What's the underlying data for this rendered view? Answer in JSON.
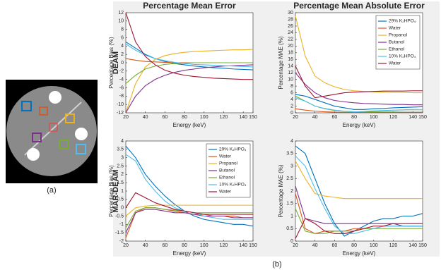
{
  "panel_a_label": "(a)",
  "panel_b_label": "(b)",
  "row_labels": [
    "DEAM",
    "MAR-DEAM"
  ],
  "chart_data": [
    {
      "type": "line",
      "title": "Percentage Mean Error",
      "x_label": "Energy (keV)",
      "y_label": "Percentage Bias (%)",
      "x": [
        20,
        30,
        40,
        50,
        60,
        70,
        80,
        90,
        100,
        110,
        120,
        130,
        140,
        150
      ],
      "xlim": [
        20,
        150
      ],
      "xticks": [
        20,
        40,
        60,
        80,
        100,
        120,
        140,
        150
      ],
      "ylim": [
        -12,
        12
      ],
      "yticks": [
        -12,
        -10,
        -8,
        -6,
        -4,
        -2,
        0,
        2,
        4,
        6,
        8,
        10,
        12
      ],
      "grid": false,
      "series": [
        {
          "color": "#0072bd",
          "values": [
            5,
            3.5,
            2,
            1,
            0.3,
            -0.2,
            -0.5,
            -0.8,
            -1,
            -1.2,
            -1.3,
            -1.5,
            -1.6,
            -1.7
          ]
        },
        {
          "color": "#d95319",
          "values": [
            1,
            0.6,
            0.3,
            0.2,
            0.1,
            0,
            0,
            0,
            0,
            0,
            0,
            0,
            0,
            0
          ]
        },
        {
          "color": "#edb120",
          "values": [
            -12,
            -5,
            -1,
            0.8,
            1.7,
            2.2,
            2.5,
            2.7,
            2.8,
            2.9,
            3,
            3.1,
            3.1,
            3.2
          ]
        },
        {
          "color": "#7e2f8e",
          "values": [
            -12,
            -8,
            -5.5,
            -4,
            -3,
            -2.3,
            -1.8,
            -1.5,
            -1.2,
            -1,
            -0.8,
            -0.7,
            -0.6,
            -0.5
          ]
        },
        {
          "color": "#77ac30",
          "values": [
            -5,
            -3,
            -1.5,
            -0.8,
            -0.4,
            -0.2,
            -0.1,
            0,
            0,
            0,
            0,
            0,
            0,
            0
          ]
        },
        {
          "color": "#4dbeee",
          "values": [
            4.5,
            3,
            1.8,
            1,
            0.5,
            0.1,
            -0.2,
            -0.4,
            -0.5,
            -0.6,
            -0.7,
            -0.8,
            -0.9,
            -1
          ]
        },
        {
          "color": "#a2142f",
          "values": [
            12,
            5,
            1.5,
            -0.5,
            -1.8,
            -2.5,
            -3,
            -3.3,
            -3.5,
            -3.7,
            -3.8,
            -3.9,
            -4,
            -4
          ]
        }
      ]
    },
    {
      "type": "line",
      "title": "Percentage Mean Absolute Error",
      "x_label": "Energy (keV)",
      "y_label": "Percentage MAE (%)",
      "x": [
        20,
        30,
        40,
        50,
        60,
        70,
        80,
        90,
        100,
        110,
        120,
        130,
        140,
        150
      ],
      "xlim": [
        20,
        150
      ],
      "xticks": [
        20,
        40,
        60,
        80,
        100,
        120,
        140,
        150
      ],
      "ylim": [
        0,
        30
      ],
      "yticks": [
        0,
        2,
        4,
        6,
        8,
        10,
        12,
        14,
        16,
        18,
        20,
        22,
        24,
        26,
        28,
        30
      ],
      "grid": false,
      "legend": "upper right",
      "series": [
        {
          "name": "29% K₂HPO₄",
          "color": "#0072bd",
          "values": [
            5.5,
            5,
            4,
            3,
            2,
            1.5,
            1,
            1,
            1.2,
            1.3,
            1.5,
            1.6,
            1.7,
            1.8
          ]
        },
        {
          "name": "Water",
          "color": "#d95319",
          "values": [
            1.2,
            0.8,
            0.5,
            0.3,
            0.2,
            0.1,
            0.1,
            0.1,
            0.1,
            0.1,
            0.1,
            0.1,
            0.1,
            0.1
          ]
        },
        {
          "name": "Propanol",
          "color": "#edb120",
          "values": [
            29,
            17,
            11,
            9,
            7.8,
            7,
            6.6,
            6.4,
            6.3,
            6.2,
            6.1,
            6.1,
            6,
            6
          ]
        },
        {
          "name": "Butanol",
          "color": "#7e2f8e",
          "values": [
            12,
            8.5,
            6,
            4.5,
            3.7,
            3.3,
            3,
            2.8,
            2.7,
            2.6,
            2.5,
            2.5,
            2.4,
            2.4
          ]
        },
        {
          "name": "Ethanol",
          "color": "#77ac30",
          "values": [
            5,
            3.5,
            2,
            1.2,
            0.7,
            0.4,
            0.3,
            0.3,
            0.3,
            0.4,
            0.4,
            0.5,
            0.5,
            0.5
          ]
        },
        {
          "name": "10% K₂HPO₄",
          "color": "#4dbeee",
          "values": [
            4.5,
            3.5,
            2,
            1.3,
            0.8,
            0.5,
            0.3,
            0.4,
            0.6,
            0.7,
            0.8,
            0.9,
            1,
            1
          ]
        },
        {
          "name": "Water",
          "color": "#a2142f",
          "values": [
            14,
            8,
            4.5,
            5,
            5.5,
            6,
            6.2,
            6.3,
            6.4,
            6.5,
            6.5,
            6.5,
            6.6,
            6.6
          ]
        }
      ]
    },
    {
      "type": "line",
      "x_label": "Energy (keV)",
      "y_label": "Percentage Bias (%)",
      "x": [
        20,
        30,
        40,
        50,
        60,
        70,
        80,
        90,
        100,
        110,
        120,
        130,
        140,
        150
      ],
      "xlim": [
        20,
        150
      ],
      "xticks": [
        20,
        40,
        60,
        80,
        100,
        120,
        140,
        150
      ],
      "ylim": [
        -2,
        4
      ],
      "yticks": [
        -2,
        -1.5,
        -1,
        -0.5,
        0,
        0.5,
        1,
        1.5,
        2,
        2.5,
        3,
        3.5,
        4
      ],
      "grid": false,
      "legend": "upper right",
      "series": [
        {
          "name": "29% K₂HPO₄",
          "color": "#0072bd",
          "values": [
            3.7,
            3,
            2,
            1.3,
            0.7,
            0.2,
            -0.2,
            -0.5,
            -0.7,
            -0.8,
            -0.9,
            -1,
            -1,
            -1.1
          ]
        },
        {
          "name": "Water",
          "color": "#d95319",
          "values": [
            -1.8,
            -0.3,
            0,
            0,
            -0.1,
            -0.2,
            -0.3,
            -0.4,
            -0.4,
            -0.5,
            -0.5,
            -0.5,
            -0.6,
            -0.6
          ]
        },
        {
          "name": "Propanol",
          "color": "#edb120",
          "values": [
            -0.5,
            0,
            0.1,
            0.15,
            0.15,
            0.15,
            0.15,
            0.15,
            0.15,
            0.15,
            0.15,
            0.15,
            0.15,
            0.15
          ]
        },
        {
          "name": "Butanol",
          "color": "#7e2f8e",
          "values": [
            -1.5,
            -0.3,
            -0.1,
            -0.1,
            -0.2,
            -0.3,
            -0.3,
            -0.4,
            -0.5,
            -0.5,
            -0.5,
            -0.6,
            -0.6,
            -0.6
          ]
        },
        {
          "name": "Ethanol",
          "color": "#77ac30",
          "values": [
            -1.2,
            -0.2,
            0,
            0,
            -0.1,
            -0.15,
            -0.2,
            -0.3,
            -0.3,
            -0.3,
            -0.3,
            -0.3,
            -0.3,
            -0.3
          ]
        },
        {
          "name": "10% K₂HPO₄",
          "color": "#4dbeee",
          "values": [
            3.2,
            2.8,
            1.7,
            1,
            0.4,
            0,
            -0.2,
            -0.3,
            -0.5,
            -0.6,
            -0.7,
            -0.7,
            -0.7,
            -0.7
          ]
        },
        {
          "name": "Water",
          "color": "#a2142f",
          "values": [
            0,
            0.9,
            0.6,
            0.3,
            0.1,
            -0.1,
            -0.2,
            -0.3,
            -0.4,
            -0.4,
            -0.4,
            -0.4,
            -0.4,
            -0.4
          ]
        }
      ]
    },
    {
      "type": "line",
      "x_label": "Energy (keV)",
      "y_label": "Percentage MAE (%)",
      "x": [
        20,
        30,
        40,
        50,
        60,
        70,
        80,
        90,
        100,
        110,
        120,
        130,
        140,
        150
      ],
      "xlim": [
        20,
        150
      ],
      "xticks": [
        20,
        40,
        60,
        80,
        100,
        120,
        140,
        150
      ],
      "ylim": [
        0,
        4
      ],
      "yticks": [
        0,
        0.5,
        1,
        1.5,
        2,
        2.5,
        3,
        3.5,
        4
      ],
      "grid": false,
      "series": [
        {
          "color": "#0072bd",
          "values": [
            3.8,
            3.5,
            2.5,
            1.5,
            0.7,
            0.2,
            0.4,
            0.6,
            0.8,
            0.9,
            0.9,
            1,
            1,
            1.1
          ]
        },
        {
          "color": "#d95319",
          "values": [
            1.9,
            0.5,
            0.3,
            0.4,
            0.4,
            0.4,
            0.5,
            0.5,
            0.5,
            0.6,
            0.6,
            0.6,
            0.6,
            0.6
          ]
        },
        {
          "color": "#edb120",
          "values": [
            3.2,
            2.5,
            1.9,
            1.8,
            1.75,
            1.7,
            1.7,
            1.7,
            1.7,
            1.7,
            1.7,
            1.7,
            1.7,
            1.7
          ]
        },
        {
          "color": "#7e2f8e",
          "values": [
            2.2,
            0.9,
            0.8,
            0.7,
            0.7,
            0.7,
            0.7,
            0.7,
            0.7,
            0.7,
            0.7,
            0.6,
            0.6,
            0.6
          ]
        },
        {
          "color": "#77ac30",
          "values": [
            1.3,
            0.4,
            0.3,
            0.3,
            0.4,
            0.4,
            0.4,
            0.5,
            0.5,
            0.5,
            0.5,
            0.5,
            0.5,
            0.5
          ]
        },
        {
          "color": "#4dbeee",
          "values": [
            3.4,
            3,
            2.1,
            1.3,
            0.6,
            0.3,
            0.3,
            0.4,
            0.5,
            0.6,
            0.6,
            0.6,
            0.6,
            0.6
          ]
        },
        {
          "color": "#a2142f",
          "values": [
            0.1,
            0.9,
            0.7,
            0.4,
            0.3,
            0.3,
            0.4,
            0.5,
            0.6,
            0.6,
            0.7,
            0.7,
            0.7,
            0.7
          ]
        }
      ]
    }
  ]
}
